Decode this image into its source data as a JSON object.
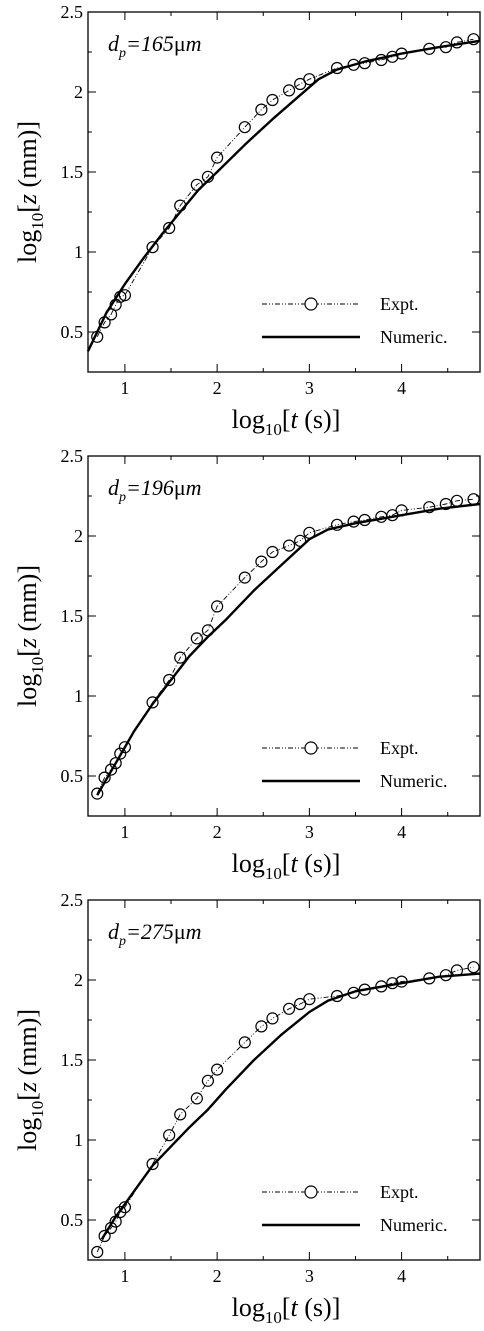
{
  "chart_data": [
    {
      "type": "line",
      "annotation": {
        "main": "d",
        "sub": "p",
        "rest": "=165μm"
      },
      "xlabel": {
        "pre": "log",
        "sub": "10",
        "bracket": "[",
        "var": "t",
        "unit": " (s)]"
      },
      "ylabel": {
        "pre": "log",
        "sub": "10",
        "bracket": "[",
        "var": "z",
        "unit": " (mm)]"
      },
      "xlim": [
        0.6,
        4.85
      ],
      "ylim": [
        0.25,
        2.5
      ],
      "xticks": [
        "1",
        "2",
        "3",
        "4"
      ],
      "yticks": [
        "0.5",
        "1",
        "1.5",
        "2",
        "2.5"
      ],
      "legend_position": "bottom-right",
      "series": [
        {
          "name": "Expt.",
          "style": "dash-dot-markers",
          "x": [
            0.7,
            0.78,
            0.85,
            0.9,
            0.95,
            1.0,
            1.3,
            1.48,
            1.6,
            1.78,
            1.9,
            2.0,
            2.3,
            2.48,
            2.6,
            2.78,
            2.9,
            3.0,
            3.3,
            3.48,
            3.6,
            3.78,
            3.9,
            4.0,
            4.3,
            4.48,
            4.6,
            4.78
          ],
          "y": [
            0.47,
            0.56,
            0.61,
            0.67,
            0.72,
            0.73,
            1.03,
            1.15,
            1.29,
            1.42,
            1.47,
            1.59,
            1.78,
            1.89,
            1.95,
            2.01,
            2.05,
            2.08,
            2.15,
            2.17,
            2.18,
            2.2,
            2.22,
            2.24,
            2.27,
            2.28,
            2.31,
            2.33
          ]
        },
        {
          "name": "Numeric.",
          "style": "solid",
          "x": [
            0.6,
            0.8,
            1.0,
            1.2,
            1.4,
            1.6,
            1.8,
            2.0,
            2.3,
            2.6,
            2.9,
            3.1,
            3.3,
            3.6,
            4.0,
            4.4,
            4.85
          ],
          "y": [
            0.38,
            0.62,
            0.8,
            0.96,
            1.11,
            1.25,
            1.39,
            1.5,
            1.67,
            1.83,
            1.98,
            2.08,
            2.14,
            2.19,
            2.24,
            2.28,
            2.32
          ]
        }
      ]
    },
    {
      "type": "line",
      "annotation": {
        "main": "d",
        "sub": "p",
        "rest": "=196μm"
      },
      "xlabel": {
        "pre": "log",
        "sub": "10",
        "bracket": "[",
        "var": "t",
        "unit": " (s)]"
      },
      "ylabel": {
        "pre": "log",
        "sub": "10",
        "bracket": "[",
        "var": "z",
        "unit": " (mm)]"
      },
      "xlim": [
        0.6,
        4.85
      ],
      "ylim": [
        0.25,
        2.5
      ],
      "xticks": [
        "1",
        "2",
        "3",
        "4"
      ],
      "yticks": [
        "0.5",
        "1",
        "1.5",
        "2",
        "2.5"
      ],
      "legend_position": "bottom-right",
      "series": [
        {
          "name": "Expt.",
          "style": "dash-dot-markers",
          "x": [
            0.7,
            0.78,
            0.85,
            0.9,
            0.95,
            1.0,
            1.3,
            1.48,
            1.6,
            1.78,
            1.9,
            2.0,
            2.3,
            2.48,
            2.6,
            2.78,
            2.9,
            3.0,
            3.3,
            3.48,
            3.6,
            3.78,
            3.9,
            4.0,
            4.3,
            4.48,
            4.6,
            4.78
          ],
          "y": [
            0.39,
            0.49,
            0.54,
            0.58,
            0.64,
            0.68,
            0.96,
            1.1,
            1.24,
            1.36,
            1.41,
            1.56,
            1.74,
            1.84,
            1.9,
            1.94,
            1.97,
            2.02,
            2.07,
            2.09,
            2.1,
            2.12,
            2.13,
            2.16,
            2.18,
            2.2,
            2.22,
            2.23
          ]
        },
        {
          "name": "Numeric.",
          "style": "solid",
          "x": [
            0.7,
            0.9,
            1.1,
            1.3,
            1.5,
            1.7,
            1.9,
            2.1,
            2.4,
            2.7,
            3.0,
            3.2,
            3.5,
            4.0,
            4.4,
            4.85
          ],
          "y": [
            0.38,
            0.58,
            0.78,
            0.95,
            1.1,
            1.25,
            1.37,
            1.48,
            1.66,
            1.82,
            1.98,
            2.04,
            2.08,
            2.13,
            2.17,
            2.2
          ]
        }
      ]
    },
    {
      "type": "line",
      "annotation": {
        "main": "d",
        "sub": "p",
        "rest": "=275μm"
      },
      "xlabel": {
        "pre": "log",
        "sub": "10",
        "bracket": "[",
        "var": "t",
        "unit": " (s)]"
      },
      "ylabel": {
        "pre": "log",
        "sub": "10",
        "bracket": "[",
        "var": "z",
        "unit": " (mm)]"
      },
      "xlim": [
        0.6,
        4.85
      ],
      "ylim": [
        0.25,
        2.5
      ],
      "xticks": [
        "1",
        "2",
        "3",
        "4"
      ],
      "yticks": [
        "0.5",
        "1",
        "1.5",
        "2",
        "2.5"
      ],
      "legend_position": "bottom-right",
      "series": [
        {
          "name": "Expt.",
          "style": "dash-dot-markers",
          "x": [
            0.7,
            0.78,
            0.85,
            0.9,
            0.95,
            1.0,
            1.3,
            1.48,
            1.6,
            1.78,
            1.9,
            2.0,
            2.3,
            2.48,
            2.6,
            2.78,
            2.9,
            3.0,
            3.3,
            3.48,
            3.6,
            3.78,
            3.9,
            4.0,
            4.3,
            4.48,
            4.6,
            4.78
          ],
          "y": [
            0.3,
            0.4,
            0.45,
            0.49,
            0.55,
            0.58,
            0.85,
            1.03,
            1.16,
            1.26,
            1.37,
            1.44,
            1.61,
            1.71,
            1.76,
            1.82,
            1.85,
            1.88,
            1.9,
            1.92,
            1.94,
            1.96,
            1.98,
            1.99,
            2.01,
            2.03,
            2.06,
            2.08
          ]
        },
        {
          "name": "Numeric.",
          "style": "solid",
          "x": [
            0.75,
            0.9,
            1.1,
            1.3,
            1.5,
            1.7,
            1.9,
            2.1,
            2.4,
            2.7,
            3.0,
            3.2,
            3.5,
            4.0,
            4.4,
            4.85
          ],
          "y": [
            0.38,
            0.52,
            0.68,
            0.84,
            0.96,
            1.08,
            1.19,
            1.32,
            1.5,
            1.66,
            1.8,
            1.87,
            1.93,
            1.98,
            2.02,
            2.04
          ]
        }
      ]
    }
  ]
}
